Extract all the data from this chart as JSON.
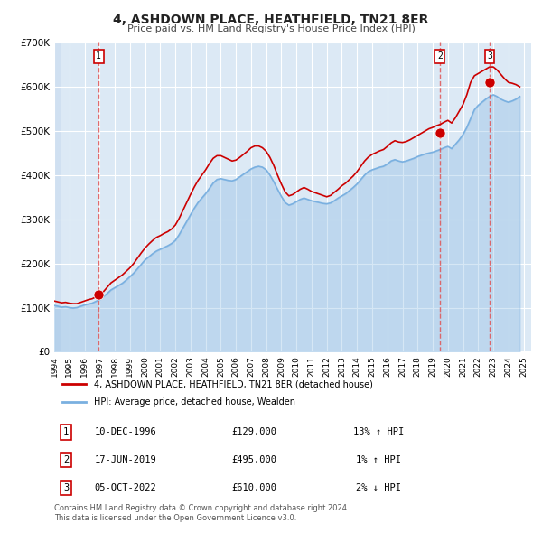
{
  "title": "4, ASHDOWN PLACE, HEATHFIELD, TN21 8ER",
  "subtitle": "Price paid vs. HM Land Registry's House Price Index (HPI)",
  "title_color": "#222222",
  "subtitle_color": "#444444",
  "bg_color": "#ffffff",
  "plot_bg_color": "#dce9f5",
  "grid_color": "#ffffff",
  "hatch_color": "#c5d8ee",
  "ylim": [
    0,
    700000
  ],
  "yticks": [
    0,
    100000,
    200000,
    300000,
    400000,
    500000,
    600000,
    700000
  ],
  "ytick_labels": [
    "£0",
    "£100K",
    "£200K",
    "£300K",
    "£400K",
    "£500K",
    "£600K",
    "£700K"
  ],
  "xlim_start": 1994.0,
  "xlim_end": 2025.5,
  "xticks": [
    1994,
    1995,
    1996,
    1997,
    1998,
    1999,
    2000,
    2001,
    2002,
    2003,
    2004,
    2005,
    2006,
    2007,
    2008,
    2009,
    2010,
    2011,
    2012,
    2013,
    2014,
    2015,
    2016,
    2017,
    2018,
    2019,
    2020,
    2021,
    2022,
    2023,
    2024,
    2025
  ],
  "hpi_color": "#7ab0e0",
  "price_color": "#cc0000",
  "sale_dot_color": "#cc0000",
  "sale_marker_size": 8,
  "vline_color": "#e05555",
  "vline_style": "--",
  "transactions": [
    {
      "num": 1,
      "date_str": "10-DEC-1996",
      "year": 1996.94,
      "price": 129000,
      "hpi_pct": "13%",
      "hpi_dir": "↑"
    },
    {
      "num": 2,
      "date_str": "17-JUN-2019",
      "year": 2019.46,
      "price": 495000,
      "hpi_pct": "1%",
      "hpi_dir": "↑"
    },
    {
      "num": 3,
      "date_str": "05-OCT-2022",
      "year": 2022.76,
      "price": 610000,
      "hpi_pct": "2%",
      "hpi_dir": "↓"
    }
  ],
  "legend_label_price": "4, ASHDOWN PLACE, HEATHFIELD, TN21 8ER (detached house)",
  "legend_label_hpi": "HPI: Average price, detached house, Wealden",
  "table_rows": [
    {
      "num": 1,
      "date": "10-DEC-1996",
      "price": "£129,000",
      "hpi": "13% ↑ HPI"
    },
    {
      "num": 2,
      "date": "17-JUN-2019",
      "price": "£495,000",
      "hpi": "1% ↑ HPI"
    },
    {
      "num": 3,
      "date": "05-OCT-2022",
      "price": "£610,000",
      "hpi": "2% ↓ HPI"
    }
  ],
  "footer_text": "Contains HM Land Registry data © Crown copyright and database right 2024.\nThis data is licensed under the Open Government Licence v3.0.",
  "hpi_data_x": [
    1994.0,
    1994.25,
    1994.5,
    1994.75,
    1995.0,
    1995.25,
    1995.5,
    1995.75,
    1996.0,
    1996.25,
    1996.5,
    1996.75,
    1997.0,
    1997.25,
    1997.5,
    1997.75,
    1998.0,
    1998.25,
    1998.5,
    1998.75,
    1999.0,
    1999.25,
    1999.5,
    1999.75,
    2000.0,
    2000.25,
    2000.5,
    2000.75,
    2001.0,
    2001.25,
    2001.5,
    2001.75,
    2002.0,
    2002.25,
    2002.5,
    2002.75,
    2003.0,
    2003.25,
    2003.5,
    2003.75,
    2004.0,
    2004.25,
    2004.5,
    2004.75,
    2005.0,
    2005.25,
    2005.5,
    2005.75,
    2006.0,
    2006.25,
    2006.5,
    2006.75,
    2007.0,
    2007.25,
    2007.5,
    2007.75,
    2008.0,
    2008.25,
    2008.5,
    2008.75,
    2009.0,
    2009.25,
    2009.5,
    2009.75,
    2010.0,
    2010.25,
    2010.5,
    2010.75,
    2011.0,
    2011.25,
    2011.5,
    2011.75,
    2012.0,
    2012.25,
    2012.5,
    2012.75,
    2013.0,
    2013.25,
    2013.5,
    2013.75,
    2014.0,
    2014.25,
    2014.5,
    2014.75,
    2015.0,
    2015.25,
    2015.5,
    2015.75,
    2016.0,
    2016.25,
    2016.5,
    2016.75,
    2017.0,
    2017.25,
    2017.5,
    2017.75,
    2018.0,
    2018.25,
    2018.5,
    2018.75,
    2019.0,
    2019.25,
    2019.5,
    2019.75,
    2020.0,
    2020.25,
    2020.5,
    2020.75,
    2021.0,
    2021.25,
    2021.5,
    2021.75,
    2022.0,
    2022.25,
    2022.5,
    2022.75,
    2023.0,
    2023.25,
    2023.5,
    2023.75,
    2024.0,
    2024.25,
    2024.5,
    2024.75
  ],
  "hpi_data_y": [
    105000,
    103000,
    101000,
    102000,
    100000,
    99000,
    100000,
    103000,
    106000,
    108000,
    110000,
    114000,
    118000,
    125000,
    132000,
    140000,
    145000,
    150000,
    155000,
    162000,
    170000,
    178000,
    188000,
    198000,
    208000,
    215000,
    222000,
    228000,
    232000,
    236000,
    240000,
    245000,
    252000,
    265000,
    280000,
    295000,
    310000,
    325000,
    338000,
    348000,
    358000,
    370000,
    382000,
    390000,
    392000,
    390000,
    388000,
    387000,
    390000,
    396000,
    402000,
    408000,
    414000,
    418000,
    420000,
    418000,
    412000,
    400000,
    385000,
    368000,
    352000,
    338000,
    332000,
    335000,
    340000,
    345000,
    348000,
    345000,
    342000,
    340000,
    338000,
    336000,
    335000,
    337000,
    342000,
    348000,
    353000,
    358000,
    365000,
    372000,
    380000,
    390000,
    400000,
    408000,
    412000,
    415000,
    418000,
    420000,
    425000,
    432000,
    435000,
    432000,
    430000,
    432000,
    435000,
    438000,
    442000,
    445000,
    448000,
    450000,
    452000,
    455000,
    458000,
    462000,
    465000,
    460000,
    470000,
    480000,
    492000,
    508000,
    528000,
    548000,
    558000,
    565000,
    572000,
    578000,
    582000,
    578000,
    572000,
    568000,
    565000,
    568000,
    572000,
    578000
  ],
  "price_data_x": [
    1994.0,
    1994.25,
    1994.5,
    1994.75,
    1995.0,
    1995.25,
    1995.5,
    1995.75,
    1996.0,
    1996.25,
    1996.5,
    1996.75,
    1997.0,
    1997.25,
    1997.5,
    1997.75,
    1998.0,
    1998.25,
    1998.5,
    1998.75,
    1999.0,
    1999.25,
    1999.5,
    1999.75,
    2000.0,
    2000.25,
    2000.5,
    2000.75,
    2001.0,
    2001.25,
    2001.5,
    2001.75,
    2002.0,
    2002.25,
    2002.5,
    2002.75,
    2003.0,
    2003.25,
    2003.5,
    2003.75,
    2004.0,
    2004.25,
    2004.5,
    2004.75,
    2005.0,
    2005.25,
    2005.5,
    2005.75,
    2006.0,
    2006.25,
    2006.5,
    2006.75,
    2007.0,
    2007.25,
    2007.5,
    2007.75,
    2008.0,
    2008.25,
    2008.5,
    2008.75,
    2009.0,
    2009.25,
    2009.5,
    2009.75,
    2010.0,
    2010.25,
    2010.5,
    2010.75,
    2011.0,
    2011.25,
    2011.5,
    2011.75,
    2012.0,
    2012.25,
    2012.5,
    2012.75,
    2013.0,
    2013.25,
    2013.5,
    2013.75,
    2014.0,
    2014.25,
    2014.5,
    2014.75,
    2015.0,
    2015.25,
    2015.5,
    2015.75,
    2016.0,
    2016.25,
    2016.5,
    2016.75,
    2017.0,
    2017.25,
    2017.5,
    2017.75,
    2018.0,
    2018.25,
    2018.5,
    2018.75,
    2019.0,
    2019.25,
    2019.5,
    2019.75,
    2020.0,
    2020.25,
    2020.5,
    2020.75,
    2021.0,
    2021.25,
    2021.5,
    2021.75,
    2022.0,
    2022.25,
    2022.5,
    2022.75,
    2023.0,
    2023.25,
    2023.5,
    2023.75,
    2024.0,
    2024.25,
    2024.5,
    2024.75
  ],
  "price_data_y": [
    115000,
    113000,
    111000,
    112000,
    110000,
    109000,
    109000,
    112000,
    115000,
    118000,
    120000,
    124000,
    129000,
    136000,
    146000,
    156000,
    162000,
    168000,
    174000,
    182000,
    190000,
    200000,
    212000,
    224000,
    235000,
    244000,
    252000,
    259000,
    263000,
    268000,
    272000,
    278000,
    287000,
    302000,
    320000,
    338000,
    356000,
    373000,
    388000,
    400000,
    412000,
    426000,
    438000,
    444000,
    444000,
    440000,
    436000,
    432000,
    434000,
    440000,
    447000,
    454000,
    462000,
    466000,
    466000,
    462000,
    454000,
    440000,
    422000,
    400000,
    380000,
    362000,
    353000,
    356000,
    362000,
    368000,
    372000,
    368000,
    363000,
    360000,
    357000,
    354000,
    351000,
    354000,
    361000,
    368000,
    376000,
    382000,
    390000,
    398000,
    408000,
    420000,
    432000,
    441000,
    447000,
    451000,
    455000,
    458000,
    465000,
    473000,
    478000,
    475000,
    474000,
    476000,
    480000,
    485000,
    490000,
    495000,
    500000,
    505000,
    508000,
    512000,
    515000,
    520000,
    524000,
    518000,
    530000,
    545000,
    560000,
    582000,
    610000,
    625000,
    630000,
    635000,
    640000,
    645000,
    645000,
    638000,
    628000,
    618000,
    610000,
    608000,
    605000,
    600000
  ]
}
